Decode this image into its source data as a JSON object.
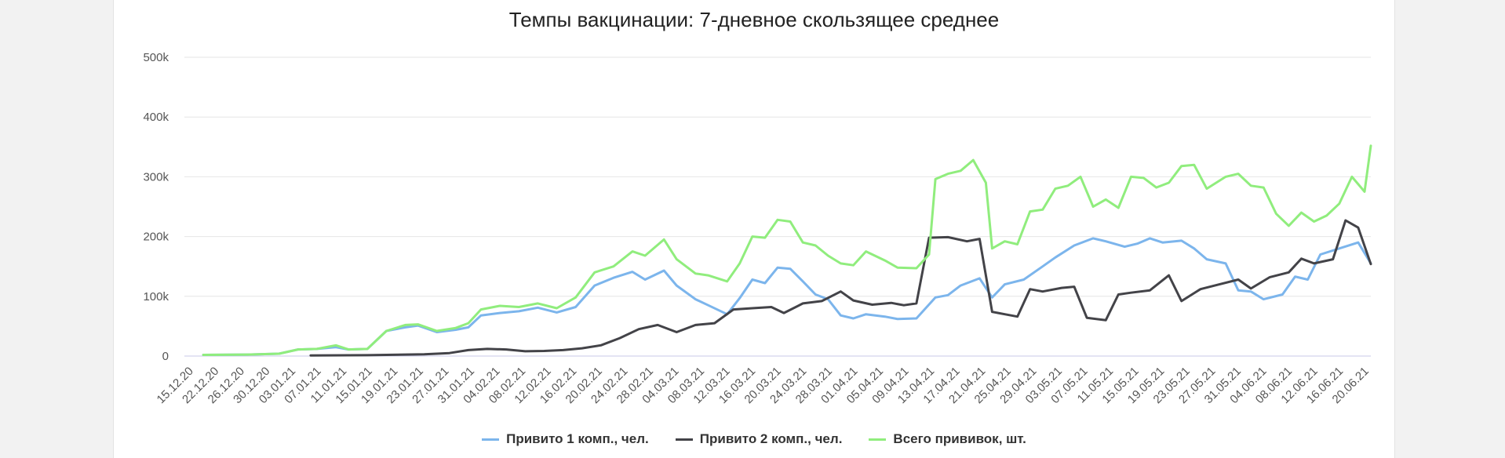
{
  "chart_data": {
    "type": "line",
    "title": "Темпы вакцинации: 7-дневное скользящее среднее",
    "xlabel": "",
    "ylabel": "",
    "ylim": [
      0,
      500000
    ],
    "y_ticks": [
      "0",
      "100k",
      "200k",
      "300k",
      "400k",
      "500k"
    ],
    "x_start": "2020-12-15",
    "x_end": "2021-06-21",
    "x_tick_labels": [
      "15.12.20",
      "22.12.20",
      "26.12.20",
      "30.12.20",
      "03.01.21",
      "07.01.21",
      "11.01.21",
      "15.01.21",
      "19.01.21",
      "23.01.21",
      "27.01.21",
      "31.01.21",
      "04.02.21",
      "08.02.21",
      "12.02.21",
      "16.02.21",
      "20.02.21",
      "24.02.21",
      "28.02.21",
      "04.03.21",
      "08.03.21",
      "12.03.21",
      "16.03.21",
      "20.03.21",
      "24.03.21",
      "28.03.21",
      "01.04.21",
      "05.04.21",
      "09.04.21",
      "13.04.21",
      "17.04.21",
      "21.04.21",
      "25.04.21",
      "29.04.21",
      "03.05.21",
      "07.05.21",
      "11.05.21",
      "15.05.21",
      "19.05.21",
      "23.05.21",
      "27.05.21",
      "31.05.21",
      "04.06.21",
      "08.06.21",
      "12.06.21",
      "16.06.21",
      "20.06.21"
    ],
    "grid": true,
    "legend_position": "bottom",
    "series": [
      {
        "name": "Привито 1 комп., чел.",
        "color": "#7cb5ec",
        "points": [
          [
            "2020-12-18",
            2000
          ],
          [
            "2020-12-25",
            2500
          ],
          [
            "2020-12-30",
            4000
          ],
          [
            "2021-01-02",
            11000
          ],
          [
            "2021-01-05",
            12000
          ],
          [
            "2021-01-08",
            15000
          ],
          [
            "2021-01-10",
            11000
          ],
          [
            "2021-01-13",
            12000
          ],
          [
            "2021-01-16",
            42000
          ],
          [
            "2021-01-19",
            48000
          ],
          [
            "2021-01-21",
            51000
          ],
          [
            "2021-01-24",
            40000
          ],
          [
            "2021-01-27",
            44000
          ],
          [
            "2021-01-29",
            48000
          ],
          [
            "2021-01-31",
            68000
          ],
          [
            "2021-02-03",
            72000
          ],
          [
            "2021-02-06",
            75000
          ],
          [
            "2021-02-09",
            81000
          ],
          [
            "2021-02-12",
            73000
          ],
          [
            "2021-02-15",
            82000
          ],
          [
            "2021-02-18",
            118000
          ],
          [
            "2021-02-21",
            131000
          ],
          [
            "2021-02-24",
            141000
          ],
          [
            "2021-02-26",
            128000
          ],
          [
            "2021-03-01",
            143000
          ],
          [
            "2021-03-03",
            118000
          ],
          [
            "2021-03-06",
            95000
          ],
          [
            "2021-03-08",
            85000
          ],
          [
            "2021-03-11",
            70000
          ],
          [
            "2021-03-13",
            97000
          ],
          [
            "2021-03-15",
            128000
          ],
          [
            "2021-03-17",
            122000
          ],
          [
            "2021-03-19",
            148000
          ],
          [
            "2021-03-21",
            146000
          ],
          [
            "2021-03-23",
            125000
          ],
          [
            "2021-03-25",
            103000
          ],
          [
            "2021-03-27",
            95000
          ],
          [
            "2021-03-29",
            68000
          ],
          [
            "2021-03-31",
            63000
          ],
          [
            "2021-04-02",
            70000
          ],
          [
            "2021-04-05",
            66000
          ],
          [
            "2021-04-07",
            62000
          ],
          [
            "2021-04-10",
            63000
          ],
          [
            "2021-04-13",
            98000
          ],
          [
            "2021-04-15",
            102000
          ],
          [
            "2021-04-17",
            118000
          ],
          [
            "2021-04-20",
            130000
          ],
          [
            "2021-04-22",
            98000
          ],
          [
            "2021-04-24",
            120000
          ],
          [
            "2021-04-27",
            128000
          ],
          [
            "2021-04-30",
            150000
          ],
          [
            "2021-05-02",
            165000
          ],
          [
            "2021-05-05",
            185000
          ],
          [
            "2021-05-08",
            197000
          ],
          [
            "2021-05-10",
            192000
          ],
          [
            "2021-05-13",
            183000
          ],
          [
            "2021-05-15",
            188000
          ],
          [
            "2021-05-17",
            197000
          ],
          [
            "2021-05-19",
            190000
          ],
          [
            "2021-05-22",
            193000
          ],
          [
            "2021-05-24",
            180000
          ],
          [
            "2021-05-26",
            162000
          ],
          [
            "2021-05-29",
            155000
          ],
          [
            "2021-05-31",
            110000
          ],
          [
            "2021-06-02",
            108000
          ],
          [
            "2021-06-04",
            95000
          ],
          [
            "2021-06-07",
            103000
          ],
          [
            "2021-06-09",
            133000
          ],
          [
            "2021-06-11",
            128000
          ],
          [
            "2021-06-13",
            170000
          ],
          [
            "2021-06-16",
            180000
          ],
          [
            "2021-06-19",
            190000
          ],
          [
            "2021-06-21",
            155000
          ]
        ]
      },
      {
        "name": "Привито 2 комп., чел.",
        "color": "#434348",
        "points": [
          [
            "2021-01-04",
            1000
          ],
          [
            "2021-01-13",
            1500
          ],
          [
            "2021-01-22",
            3000
          ],
          [
            "2021-01-26",
            5000
          ],
          [
            "2021-01-29",
            10000
          ],
          [
            "2021-02-01",
            12000
          ],
          [
            "2021-02-04",
            11000
          ],
          [
            "2021-02-07",
            8000
          ],
          [
            "2021-02-10",
            8500
          ],
          [
            "2021-02-13",
            10000
          ],
          [
            "2021-02-16",
            13000
          ],
          [
            "2021-02-19",
            18000
          ],
          [
            "2021-02-22",
            30000
          ],
          [
            "2021-02-25",
            45000
          ],
          [
            "2021-02-28",
            52000
          ],
          [
            "2021-03-03",
            40000
          ],
          [
            "2021-03-06",
            52000
          ],
          [
            "2021-03-09",
            55000
          ],
          [
            "2021-03-12",
            78000
          ],
          [
            "2021-03-15",
            80000
          ],
          [
            "2021-03-18",
            82000
          ],
          [
            "2021-03-20",
            72000
          ],
          [
            "2021-03-23",
            88000
          ],
          [
            "2021-03-26",
            92000
          ],
          [
            "2021-03-29",
            108000
          ],
          [
            "2021-03-31",
            93000
          ],
          [
            "2021-04-03",
            86000
          ],
          [
            "2021-04-06",
            89000
          ],
          [
            "2021-04-08",
            85000
          ],
          [
            "2021-04-10",
            88000
          ],
          [
            "2021-04-12",
            198000
          ],
          [
            "2021-04-15",
            199000
          ],
          [
            "2021-04-18",
            192000
          ],
          [
            "2021-04-20",
            196000
          ],
          [
            "2021-04-22",
            74000
          ],
          [
            "2021-04-24",
            70000
          ],
          [
            "2021-04-26",
            66000
          ],
          [
            "2021-04-28",
            112000
          ],
          [
            "2021-04-30",
            108000
          ],
          [
            "2021-05-03",
            114000
          ],
          [
            "2021-05-05",
            116000
          ],
          [
            "2021-05-07",
            64000
          ],
          [
            "2021-05-10",
            60000
          ],
          [
            "2021-05-12",
            103000
          ],
          [
            "2021-05-14",
            106000
          ],
          [
            "2021-05-17",
            110000
          ],
          [
            "2021-05-20",
            135000
          ],
          [
            "2021-05-22",
            92000
          ],
          [
            "2021-05-25",
            112000
          ],
          [
            "2021-05-28",
            120000
          ],
          [
            "2021-05-31",
            128000
          ],
          [
            "2021-06-02",
            113000
          ],
          [
            "2021-06-05",
            132000
          ],
          [
            "2021-06-08",
            140000
          ],
          [
            "2021-06-10",
            163000
          ],
          [
            "2021-06-12",
            155000
          ],
          [
            "2021-06-15",
            162000
          ],
          [
            "2021-06-17",
            227000
          ],
          [
            "2021-06-19",
            215000
          ],
          [
            "2021-06-21",
            154000
          ]
        ]
      },
      {
        "name": "Всего прививок, шт.",
        "color": "#90ed7d",
        "points": [
          [
            "2020-12-18",
            2000
          ],
          [
            "2020-12-25",
            2500
          ],
          [
            "2020-12-30",
            4000
          ],
          [
            "2021-01-02",
            11000
          ],
          [
            "2021-01-05",
            12000
          ],
          [
            "2021-01-08",
            18000
          ],
          [
            "2021-01-10",
            11000
          ],
          [
            "2021-01-13",
            12000
          ],
          [
            "2021-01-16",
            42000
          ],
          [
            "2021-01-19",
            52000
          ],
          [
            "2021-01-21",
            53000
          ],
          [
            "2021-01-24",
            42000
          ],
          [
            "2021-01-27",
            47000
          ],
          [
            "2021-01-29",
            55000
          ],
          [
            "2021-01-31",
            78000
          ],
          [
            "2021-02-03",
            84000
          ],
          [
            "2021-02-06",
            82000
          ],
          [
            "2021-02-09",
            88000
          ],
          [
            "2021-02-12",
            80000
          ],
          [
            "2021-02-15",
            98000
          ],
          [
            "2021-02-18",
            140000
          ],
          [
            "2021-02-21",
            150000
          ],
          [
            "2021-02-24",
            175000
          ],
          [
            "2021-02-26",
            168000
          ],
          [
            "2021-03-01",
            195000
          ],
          [
            "2021-03-03",
            162000
          ],
          [
            "2021-03-06",
            138000
          ],
          [
            "2021-03-08",
            135000
          ],
          [
            "2021-03-11",
            125000
          ],
          [
            "2021-03-13",
            155000
          ],
          [
            "2021-03-15",
            200000
          ],
          [
            "2021-03-17",
            198000
          ],
          [
            "2021-03-19",
            228000
          ],
          [
            "2021-03-21",
            225000
          ],
          [
            "2021-03-23",
            190000
          ],
          [
            "2021-03-25",
            185000
          ],
          [
            "2021-03-27",
            168000
          ],
          [
            "2021-03-29",
            155000
          ],
          [
            "2021-03-31",
            152000
          ],
          [
            "2021-04-02",
            175000
          ],
          [
            "2021-04-05",
            160000
          ],
          [
            "2021-04-07",
            148000
          ],
          [
            "2021-04-10",
            147000
          ],
          [
            "2021-04-12",
            170000
          ],
          [
            "2021-04-13",
            296000
          ],
          [
            "2021-04-15",
            305000
          ],
          [
            "2021-04-17",
            310000
          ],
          [
            "2021-04-19",
            328000
          ],
          [
            "2021-04-21",
            290000
          ],
          [
            "2021-04-22",
            180000
          ],
          [
            "2021-04-24",
            192000
          ],
          [
            "2021-04-26",
            187000
          ],
          [
            "2021-04-28",
            242000
          ],
          [
            "2021-04-30",
            245000
          ],
          [
            "2021-05-02",
            280000
          ],
          [
            "2021-05-04",
            285000
          ],
          [
            "2021-05-06",
            300000
          ],
          [
            "2021-05-08",
            250000
          ],
          [
            "2021-05-10",
            262000
          ],
          [
            "2021-05-12",
            248000
          ],
          [
            "2021-05-14",
            300000
          ],
          [
            "2021-05-16",
            298000
          ],
          [
            "2021-05-18",
            282000
          ],
          [
            "2021-05-20",
            290000
          ],
          [
            "2021-05-22",
            318000
          ],
          [
            "2021-05-24",
            320000
          ],
          [
            "2021-05-26",
            280000
          ],
          [
            "2021-05-29",
            300000
          ],
          [
            "2021-05-31",
            305000
          ],
          [
            "2021-06-02",
            285000
          ],
          [
            "2021-06-04",
            282000
          ],
          [
            "2021-06-06",
            238000
          ],
          [
            "2021-06-08",
            218000
          ],
          [
            "2021-06-10",
            240000
          ],
          [
            "2021-06-12",
            225000
          ],
          [
            "2021-06-14",
            235000
          ],
          [
            "2021-06-16",
            255000
          ],
          [
            "2021-06-18",
            300000
          ],
          [
            "2021-06-20",
            275000
          ],
          [
            "2021-06-21",
            352000
          ]
        ]
      }
    ]
  }
}
